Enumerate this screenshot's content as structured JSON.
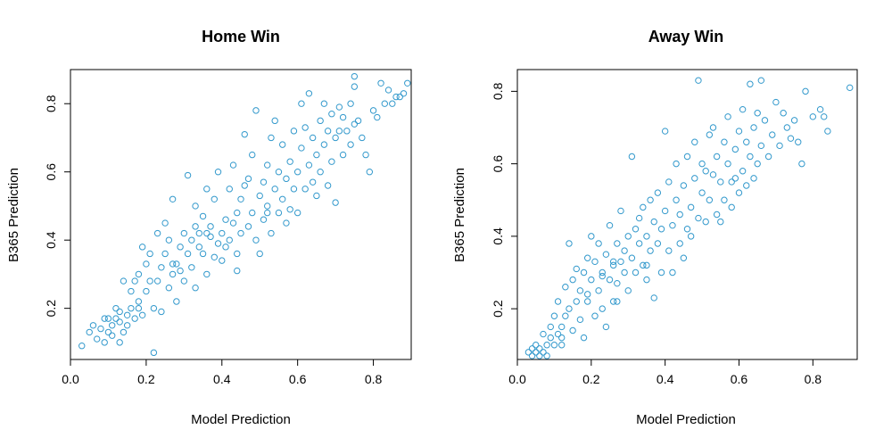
{
  "chart_data": [
    {
      "type": "scatter",
      "title": "Home Win",
      "xlabel": "Model Prediction",
      "ylabel": "B365 Prediction",
      "xlim": [
        0.0,
        0.9
      ],
      "ylim": [
        0.05,
        0.9
      ],
      "xticks": [
        0.0,
        0.2,
        0.4,
        0.6,
        0.8
      ],
      "yticks": [
        0.2,
        0.4,
        0.6,
        0.8
      ],
      "xtick_labels": [
        "0.0",
        "0.2",
        "0.4",
        "0.6",
        "0.8"
      ],
      "ytick_labels": [
        "0.2",
        "0.4",
        "0.6",
        "0.8"
      ],
      "grid": false,
      "marker": "open-circle",
      "color": "#3399cc",
      "points": [
        [
          0.03,
          0.09
        ],
        [
          0.05,
          0.13
        ],
        [
          0.06,
          0.15
        ],
        [
          0.07,
          0.11
        ],
        [
          0.08,
          0.14
        ],
        [
          0.09,
          0.1
        ],
        [
          0.09,
          0.17
        ],
        [
          0.1,
          0.13
        ],
        [
          0.1,
          0.17
        ],
        [
          0.11,
          0.12
        ],
        [
          0.11,
          0.15
        ],
        [
          0.12,
          0.17
        ],
        [
          0.12,
          0.2
        ],
        [
          0.13,
          0.1
        ],
        [
          0.13,
          0.16
        ],
        [
          0.13,
          0.19
        ],
        [
          0.14,
          0.13
        ],
        [
          0.14,
          0.28
        ],
        [
          0.15,
          0.15
        ],
        [
          0.15,
          0.18
        ],
        [
          0.16,
          0.2
        ],
        [
          0.16,
          0.25
        ],
        [
          0.17,
          0.28
        ],
        [
          0.17,
          0.17
        ],
        [
          0.18,
          0.22
        ],
        [
          0.18,
          0.3
        ],
        [
          0.19,
          0.18
        ],
        [
          0.19,
          0.38
        ],
        [
          0.2,
          0.25
        ],
        [
          0.2,
          0.33
        ],
        [
          0.21,
          0.28
        ],
        [
          0.21,
          0.36
        ],
        [
          0.22,
          0.2
        ],
        [
          0.22,
          0.07
        ],
        [
          0.23,
          0.28
        ],
        [
          0.23,
          0.42
        ],
        [
          0.24,
          0.32
        ],
        [
          0.24,
          0.19
        ],
        [
          0.25,
          0.36
        ],
        [
          0.25,
          0.45
        ],
        [
          0.26,
          0.26
        ],
        [
          0.26,
          0.4
        ],
        [
          0.27,
          0.3
        ],
        [
          0.27,
          0.52
        ],
        [
          0.28,
          0.33
        ],
        [
          0.28,
          0.22
        ],
        [
          0.29,
          0.38
        ],
        [
          0.29,
          0.31
        ],
        [
          0.3,
          0.42
        ],
        [
          0.3,
          0.28
        ],
        [
          0.31,
          0.36
        ],
        [
          0.31,
          0.59
        ],
        [
          0.32,
          0.4
        ],
        [
          0.32,
          0.32
        ],
        [
          0.33,
          0.44
        ],
        [
          0.33,
          0.5
        ],
        [
          0.34,
          0.38
        ],
        [
          0.34,
          0.42
        ],
        [
          0.35,
          0.36
        ],
        [
          0.35,
          0.47
        ],
        [
          0.36,
          0.3
        ],
        [
          0.36,
          0.55
        ],
        [
          0.37,
          0.41
        ],
        [
          0.37,
          0.44
        ],
        [
          0.38,
          0.35
        ],
        [
          0.38,
          0.52
        ],
        [
          0.39,
          0.39
        ],
        [
          0.39,
          0.6
        ],
        [
          0.4,
          0.42
        ],
        [
          0.4,
          0.34
        ],
        [
          0.41,
          0.46
        ],
        [
          0.41,
          0.38
        ],
        [
          0.42,
          0.55
        ],
        [
          0.42,
          0.4
        ],
        [
          0.43,
          0.45
        ],
        [
          0.43,
          0.62
        ],
        [
          0.44,
          0.36
        ],
        [
          0.44,
          0.48
        ],
        [
          0.45,
          0.52
        ],
        [
          0.45,
          0.42
        ],
        [
          0.46,
          0.56
        ],
        [
          0.46,
          0.71
        ],
        [
          0.47,
          0.44
        ],
        [
          0.47,
          0.58
        ],
        [
          0.48,
          0.48
        ],
        [
          0.48,
          0.65
        ],
        [
          0.49,
          0.4
        ],
        [
          0.49,
          0.78
        ],
        [
          0.5,
          0.53
        ],
        [
          0.5,
          0.36
        ],
        [
          0.51,
          0.57
        ],
        [
          0.51,
          0.46
        ],
        [
          0.52,
          0.62
        ],
        [
          0.52,
          0.5
        ],
        [
          0.53,
          0.7
        ],
        [
          0.53,
          0.42
        ],
        [
          0.54,
          0.55
        ],
        [
          0.54,
          0.75
        ],
        [
          0.55,
          0.48
        ],
        [
          0.55,
          0.6
        ],
        [
          0.56,
          0.52
        ],
        [
          0.56,
          0.68
        ],
        [
          0.57,
          0.45
        ],
        [
          0.57,
          0.58
        ],
        [
          0.58,
          0.63
        ],
        [
          0.58,
          0.49
        ],
        [
          0.59,
          0.72
        ],
        [
          0.59,
          0.55
        ],
        [
          0.6,
          0.6
        ],
        [
          0.6,
          0.48
        ],
        [
          0.61,
          0.67
        ],
        [
          0.61,
          0.8
        ],
        [
          0.62,
          0.55
        ],
        [
          0.62,
          0.73
        ],
        [
          0.63,
          0.62
        ],
        [
          0.63,
          0.83
        ],
        [
          0.64,
          0.57
        ],
        [
          0.64,
          0.7
        ],
        [
          0.65,
          0.65
        ],
        [
          0.65,
          0.53
        ],
        [
          0.66,
          0.75
        ],
        [
          0.66,
          0.6
        ],
        [
          0.67,
          0.8
        ],
        [
          0.67,
          0.68
        ],
        [
          0.68,
          0.72
        ],
        [
          0.68,
          0.56
        ],
        [
          0.69,
          0.77
        ],
        [
          0.69,
          0.63
        ],
        [
          0.7,
          0.7
        ],
        [
          0.7,
          0.51
        ],
        [
          0.71,
          0.79
        ],
        [
          0.71,
          0.72
        ],
        [
          0.72,
          0.65
        ],
        [
          0.72,
          0.76
        ],
        [
          0.73,
          0.72
        ],
        [
          0.74,
          0.8
        ],
        [
          0.74,
          0.68
        ],
        [
          0.75,
          0.85
        ],
        [
          0.75,
          0.74
        ],
        [
          0.76,
          0.75
        ],
        [
          0.77,
          0.7
        ],
        [
          0.78,
          0.65
        ],
        [
          0.79,
          0.6
        ],
        [
          0.8,
          0.78
        ],
        [
          0.81,
          0.76
        ],
        [
          0.82,
          0.86
        ],
        [
          0.83,
          0.8
        ],
        [
          0.84,
          0.84
        ],
        [
          0.85,
          0.8
        ],
        [
          0.86,
          0.82
        ],
        [
          0.87,
          0.82
        ],
        [
          0.88,
          0.83
        ],
        [
          0.89,
          0.86
        ],
        [
          0.75,
          0.88
        ],
        [
          0.27,
          0.33
        ],
        [
          0.33,
          0.26
        ],
        [
          0.18,
          0.2
        ],
        [
          0.36,
          0.42
        ],
        [
          0.44,
          0.31
        ],
        [
          0.52,
          0.48
        ]
      ]
    },
    {
      "type": "scatter",
      "title": "Away Win",
      "xlabel": "Model Prediction",
      "ylabel": "B365 Prediction",
      "xlim": [
        0.0,
        0.92
      ],
      "ylim": [
        0.06,
        0.86
      ],
      "xticks": [
        0.0,
        0.2,
        0.4,
        0.6,
        0.8
      ],
      "yticks": [
        0.2,
        0.4,
        0.6,
        0.8
      ],
      "xtick_labels": [
        "0.0",
        "0.2",
        "0.4",
        "0.6",
        "0.8"
      ],
      "ytick_labels": [
        "0.2",
        "0.4",
        "0.6",
        "0.8"
      ],
      "grid": false,
      "marker": "open-circle",
      "color": "#3399cc",
      "points": [
        [
          0.03,
          0.08
        ],
        [
          0.04,
          0.07
        ],
        [
          0.04,
          0.09
        ],
        [
          0.05,
          0.08
        ],
        [
          0.05,
          0.1
        ],
        [
          0.06,
          0.07
        ],
        [
          0.06,
          0.09
        ],
        [
          0.07,
          0.08
        ],
        [
          0.07,
          0.13
        ],
        [
          0.08,
          0.1
        ],
        [
          0.08,
          0.07
        ],
        [
          0.09,
          0.12
        ],
        [
          0.09,
          0.15
        ],
        [
          0.1,
          0.1
        ],
        [
          0.1,
          0.18
        ],
        [
          0.11,
          0.13
        ],
        [
          0.11,
          0.22
        ],
        [
          0.12,
          0.15
        ],
        [
          0.12,
          0.1
        ],
        [
          0.13,
          0.18
        ],
        [
          0.13,
          0.26
        ],
        [
          0.14,
          0.2
        ],
        [
          0.14,
          0.38
        ],
        [
          0.15,
          0.14
        ],
        [
          0.15,
          0.28
        ],
        [
          0.16,
          0.22
        ],
        [
          0.16,
          0.31
        ],
        [
          0.17,
          0.17
        ],
        [
          0.17,
          0.25
        ],
        [
          0.18,
          0.3
        ],
        [
          0.18,
          0.12
        ],
        [
          0.19,
          0.34
        ],
        [
          0.19,
          0.22
        ],
        [
          0.2,
          0.4
        ],
        [
          0.2,
          0.28
        ],
        [
          0.21,
          0.18
        ],
        [
          0.21,
          0.33
        ],
        [
          0.22,
          0.38
        ],
        [
          0.22,
          0.25
        ],
        [
          0.23,
          0.3
        ],
        [
          0.23,
          0.2
        ],
        [
          0.24,
          0.35
        ],
        [
          0.24,
          0.15
        ],
        [
          0.25,
          0.28
        ],
        [
          0.25,
          0.43
        ],
        [
          0.26,
          0.32
        ],
        [
          0.26,
          0.22
        ],
        [
          0.27,
          0.38
        ],
        [
          0.27,
          0.27
        ],
        [
          0.28,
          0.47
        ],
        [
          0.28,
          0.33
        ],
        [
          0.29,
          0.3
        ],
        [
          0.29,
          0.36
        ],
        [
          0.3,
          0.4
        ],
        [
          0.3,
          0.25
        ],
        [
          0.31,
          0.62
        ],
        [
          0.31,
          0.34
        ],
        [
          0.32,
          0.42
        ],
        [
          0.32,
          0.3
        ],
        [
          0.33,
          0.38
        ],
        [
          0.33,
          0.45
        ],
        [
          0.34,
          0.32
        ],
        [
          0.34,
          0.48
        ],
        [
          0.35,
          0.4
        ],
        [
          0.35,
          0.28
        ],
        [
          0.36,
          0.5
        ],
        [
          0.36,
          0.36
        ],
        [
          0.37,
          0.44
        ],
        [
          0.37,
          0.23
        ],
        [
          0.38,
          0.38
        ],
        [
          0.38,
          0.52
        ],
        [
          0.39,
          0.42
        ],
        [
          0.39,
          0.3
        ],
        [
          0.4,
          0.47
        ],
        [
          0.4,
          0.69
        ],
        [
          0.41,
          0.36
        ],
        [
          0.41,
          0.55
        ],
        [
          0.42,
          0.43
        ],
        [
          0.42,
          0.3
        ],
        [
          0.43,
          0.5
        ],
        [
          0.43,
          0.6
        ],
        [
          0.44,
          0.38
        ],
        [
          0.44,
          0.46
        ],
        [
          0.45,
          0.54
        ],
        [
          0.45,
          0.34
        ],
        [
          0.46,
          0.42
        ],
        [
          0.46,
          0.62
        ],
        [
          0.47,
          0.48
        ],
        [
          0.47,
          0.4
        ],
        [
          0.48,
          0.56
        ],
        [
          0.48,
          0.66
        ],
        [
          0.49,
          0.45
        ],
        [
          0.49,
          0.83
        ],
        [
          0.5,
          0.52
        ],
        [
          0.5,
          0.6
        ],
        [
          0.51,
          0.44
        ],
        [
          0.51,
          0.58
        ],
        [
          0.52,
          0.68
        ],
        [
          0.52,
          0.5
        ],
        [
          0.53,
          0.57
        ],
        [
          0.53,
          0.7
        ],
        [
          0.54,
          0.46
        ],
        [
          0.54,
          0.62
        ],
        [
          0.55,
          0.55
        ],
        [
          0.55,
          0.44
        ],
        [
          0.56,
          0.66
        ],
        [
          0.56,
          0.5
        ],
        [
          0.57,
          0.6
        ],
        [
          0.57,
          0.73
        ],
        [
          0.58,
          0.55
        ],
        [
          0.58,
          0.48
        ],
        [
          0.59,
          0.64
        ],
        [
          0.59,
          0.56
        ],
        [
          0.6,
          0.69
        ],
        [
          0.6,
          0.52
        ],
        [
          0.61,
          0.58
        ],
        [
          0.61,
          0.75
        ],
        [
          0.62,
          0.54
        ],
        [
          0.62,
          0.66
        ],
        [
          0.63,
          0.62
        ],
        [
          0.63,
          0.82
        ],
        [
          0.64,
          0.7
        ],
        [
          0.64,
          0.56
        ],
        [
          0.65,
          0.74
        ],
        [
          0.65,
          0.6
        ],
        [
          0.66,
          0.65
        ],
        [
          0.66,
          0.83
        ],
        [
          0.67,
          0.72
        ],
        [
          0.68,
          0.62
        ],
        [
          0.69,
          0.68
        ],
        [
          0.7,
          0.77
        ],
        [
          0.71,
          0.65
        ],
        [
          0.72,
          0.74
        ],
        [
          0.73,
          0.7
        ],
        [
          0.74,
          0.67
        ],
        [
          0.75,
          0.72
        ],
        [
          0.76,
          0.66
        ],
        [
          0.77,
          0.6
        ],
        [
          0.78,
          0.8
        ],
        [
          0.8,
          0.73
        ],
        [
          0.82,
          0.75
        ],
        [
          0.83,
          0.73
        ],
        [
          0.84,
          0.69
        ],
        [
          0.9,
          0.81
        ],
        [
          0.23,
          0.29
        ],
        [
          0.26,
          0.33
        ],
        [
          0.35,
          0.32
        ],
        [
          0.27,
          0.22
        ],
        [
          0.19,
          0.24
        ],
        [
          0.12,
          0.12
        ]
      ]
    }
  ]
}
